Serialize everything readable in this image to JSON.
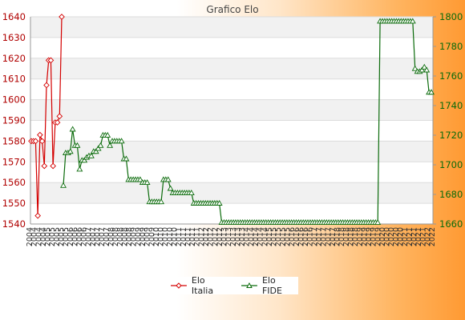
{
  "chart_data": {
    "type": "line",
    "title": "Grafico Elo",
    "ylim_left": [
      1540,
      1640
    ],
    "yticks_left": [
      1540,
      1550,
      1560,
      1570,
      1580,
      1590,
      1600,
      1610,
      1620,
      1630,
      1640
    ],
    "ylim_right": [
      1660,
      1800
    ],
    "yticks_right": [
      1660,
      1680,
      1700,
      1720,
      1740,
      1760,
      1780,
      1800
    ],
    "grid": "horizontal bands",
    "legend_position": "bottom",
    "series": [
      {
        "name": "Elo Italia",
        "axis": "left",
        "color": "#d40000",
        "values": [
          1580,
          1580,
          1580,
          1544,
          1583,
          1580,
          1568,
          1607,
          1619,
          1619,
          1568,
          1589,
          1589,
          1592,
          1640
        ]
      },
      {
        "name": "Elo FIDE",
        "axis": "right",
        "color": "#0b6b0b",
        "values": [
          1686,
          1708,
          1708,
          1709,
          1724,
          1713,
          1713,
          1697,
          1703,
          1703,
          1705,
          1706,
          1706,
          1709,
          1709,
          1711,
          1713,
          1720,
          1720,
          1720,
          1713,
          1716,
          1716,
          1716,
          1716,
          1716,
          1704,
          1704,
          1690,
          1690,
          1690,
          1690,
          1690,
          1690,
          1688,
          1688,
          1688,
          1675,
          1675,
          1675,
          1675,
          1675,
          1675,
          1690,
          1690,
          1690,
          1684,
          1681,
          1681,
          1681,
          1681,
          1681,
          1681,
          1681,
          1681,
          1681,
          1674,
          1674,
          1674,
          1674,
          1674,
          1674,
          1674,
          1674,
          1674,
          1674,
          1674,
          1674,
          1661,
          1661,
          1661,
          1661,
          1661,
          1661,
          1661,
          1661,
          1661,
          1661,
          1661,
          1661,
          1661,
          1661,
          1661,
          1661,
          1661,
          1661,
          1661,
          1661,
          1661,
          1661,
          1661,
          1661,
          1661,
          1661,
          1661,
          1661,
          1661,
          1661,
          1661,
          1661,
          1661,
          1661,
          1661,
          1661,
          1661,
          1661,
          1661,
          1661,
          1661,
          1661,
          1661,
          1661,
          1661,
          1661,
          1661,
          1661,
          1661,
          1661,
          1661,
          1661,
          1661,
          1661,
          1661,
          1661,
          1661,
          1661,
          1661,
          1661,
          1661,
          1661,
          1661,
          1661,
          1661,
          1661,
          1661,
          1661,
          1797,
          1797,
          1797,
          1797,
          1797,
          1797,
          1797,
          1797,
          1797,
          1797,
          1797,
          1797,
          1797,
          1797,
          1797,
          1765,
          1763,
          1763,
          1764,
          1766,
          1764,
          1749,
          1749
        ]
      }
    ],
    "x_tick_labels": [
      "2004",
      "2004",
      "2004",
      "2004",
      "2005",
      "2005",
      "2005",
      "2005",
      "2005",
      "2006",
      "2006",
      "2006",
      "2006",
      "2007",
      "2007",
      "2007",
      "2007",
      "2007",
      "2008",
      "2008",
      "2008",
      "2008",
      "2008",
      "2009",
      "2009",
      "2009",
      "2009",
      "2009",
      "2010",
      "2010",
      "2010",
      "2010",
      "2010",
      "2011",
      "2011",
      "2011",
      "2011",
      "2011",
      "2012",
      "2012",
      "2012",
      "2012",
      "2012",
      "2013",
      "2013",
      "2013",
      "2013",
      "2013",
      "2014",
      "2014",
      "2014",
      "2014",
      "2014",
      "2015",
      "2015",
      "2015",
      "2015",
      "2015",
      "2016",
      "2016",
      "2016",
      "2016",
      "2016",
      "2017",
      "2017",
      "2017",
      "2017",
      "2017",
      "2018",
      "2018",
      "2018",
      "2018",
      "2018",
      "2019",
      "2019",
      "2019",
      "2019",
      "2019",
      "2020",
      "2020",
      "2020",
      "2020",
      "2020",
      "2021",
      "2021",
      "2021",
      "2021",
      "2021",
      "2022",
      "2022"
    ]
  }
}
